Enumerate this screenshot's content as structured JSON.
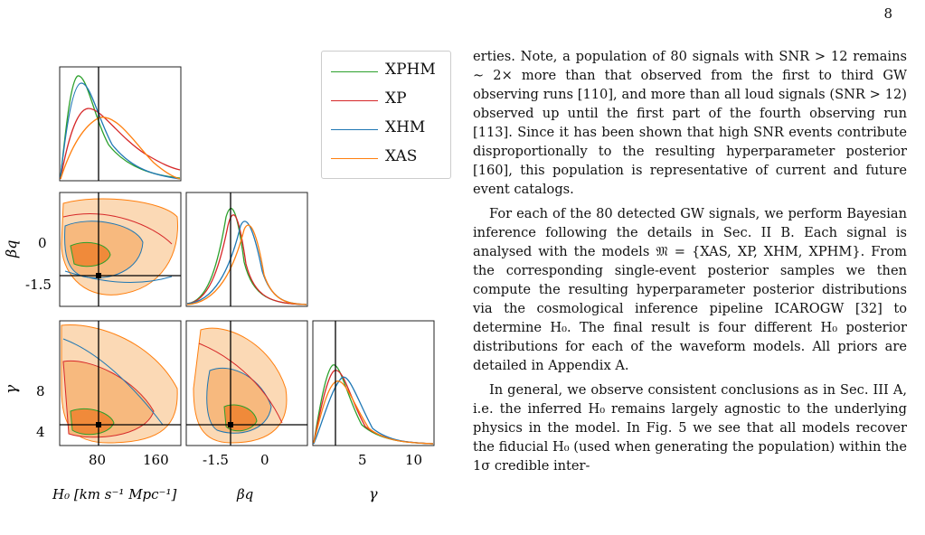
{
  "page_number": "8",
  "figure": {
    "legend": [
      {
        "label": "XPHM",
        "color": "#2ca02c"
      },
      {
        "label": "XP",
        "color": "#d62728"
      },
      {
        "label": "XHM",
        "color": "#1f77b4"
      },
      {
        "label": "XAS",
        "color": "#ff7f0e"
      }
    ],
    "axes": {
      "x_labels": [
        "H₀ [km s⁻¹ Mpc⁻¹]",
        "βq",
        "γ"
      ],
      "y_labels": [
        "βq",
        "γ"
      ],
      "h0_ticks": [
        "80",
        "160"
      ],
      "beta_ticks": [
        "-1.5",
        "0"
      ],
      "gamma_ticks": [
        "5",
        "10"
      ],
      "beta_y_ticks": [
        "0",
        "-1.5"
      ],
      "gamma_y_ticks": [
        "8",
        "4"
      ]
    },
    "colors": {
      "fill": "#f4a460",
      "fill_dark": "#ff7f0e",
      "truth": "#000000"
    }
  },
  "text": {
    "p1": "erties. Note, a population of 80 signals with SNR > 12 remains ∼ 2× more than that observed from the first to third GW observing runs [110], and more than all loud signals (SNR > 12) observed up until the first part of the fourth observing run [113]. Since it has been shown that high SNR events contribute disproportionally to the resulting hyperparameter posterior [160], this population is representative of current and future event catalogs.",
    "p2": "For each of the 80 detected GW signals, we perform Bayesian inference following the details in Sec. II B. Each signal is analysed with the models 𝔐 = {XAS, XP, XHM, XPHM}. From the corresponding single-event posterior samples we then compute the resulting hyperparameter posterior distributions via the cosmological inference pipeline ICAROGW [32] to determine H₀. The final result is four different H₀ posterior distributions for each of the waveform models. All priors are detailed in Appendix A.",
    "p3": "In general, we observe consistent conclusions as in Sec. III A, i.e. the inferred H₀ remains largely agnostic to the underlying physics in the model. In Fig. 5 we see that all models recover the fiducial H₀ (used when generating the population) within the 1σ credible inter-"
  }
}
